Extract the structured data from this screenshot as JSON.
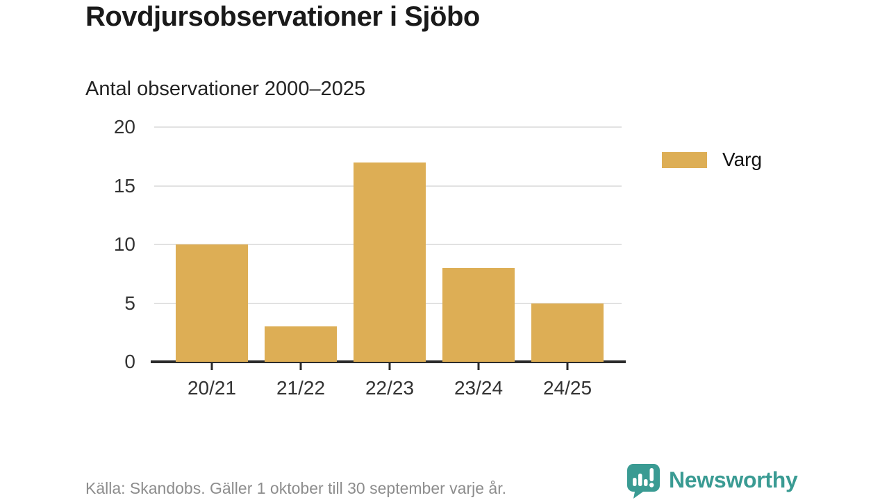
{
  "title": "Rovdjursobservationer i Sjöbo",
  "subtitle": "Antal observationer 2000–2025",
  "legend": {
    "label": "Varg",
    "color": "#DDAE55"
  },
  "footer": {
    "source": "Källa: Skandobs. Gäller 1 oktober till 30 september varje år.",
    "brand": "Newsworthy",
    "brand_color": "#3a9b93"
  },
  "chart_data": {
    "type": "bar",
    "title": "Rovdjursobservationer i Sjöbo",
    "subtitle": "Antal observationer 2000–2025",
    "categories": [
      "20/21",
      "21/22",
      "22/23",
      "23/24",
      "24/25"
    ],
    "series": [
      {
        "name": "Varg",
        "values": [
          10,
          3,
          17,
          8,
          5
        ],
        "color": "#DDAE55"
      }
    ],
    "xlabel": "",
    "ylabel": "",
    "ylim": [
      0,
      20
    ],
    "yticks": [
      0,
      5,
      10,
      15,
      20
    ],
    "grid": true,
    "legend_position": "right"
  }
}
